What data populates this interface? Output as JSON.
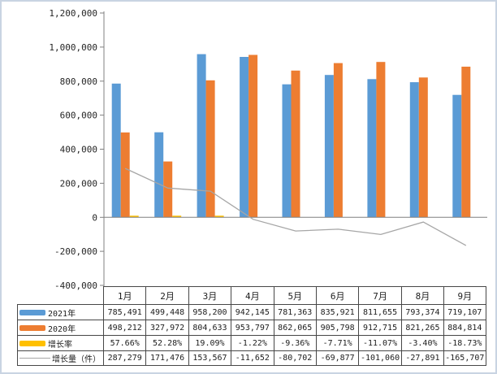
{
  "chart_data": {
    "type": "bar",
    "subtype": "combo-clustered-bar-with-line",
    "title": "",
    "xlabel": "",
    "ylabel": "",
    "categories": [
      "1月",
      "2月",
      "3月",
      "4月",
      "5月",
      "6月",
      "7月",
      "8月",
      "9月"
    ],
    "series": [
      {
        "name": "2021年",
        "kind": "bar",
        "color": "#5B9BD5",
        "values": [
          785491,
          499448,
          958200,
          942145,
          781363,
          835921,
          811655,
          793374,
          719107
        ],
        "display": [
          "785,491",
          "499,448",
          "958,200",
          "942,145",
          "781,363",
          "835,921",
          "811,655",
          "793,374",
          "719,107"
        ]
      },
      {
        "name": "2020年",
        "kind": "bar",
        "color": "#ED7D31",
        "values": [
          498212,
          327972,
          804633,
          953797,
          862065,
          905798,
          912715,
          821265,
          884814
        ],
        "display": [
          "498,212",
          "327,972",
          "804,633",
          "953,797",
          "862,065",
          "905,798",
          "912,715",
          "821,265",
          "884,814"
        ]
      },
      {
        "name": "增长率",
        "kind": "bar",
        "color": "#FFC000",
        "values": [
          57.66,
          52.28,
          19.09,
          -1.22,
          -9.36,
          -7.71,
          -11.07,
          -3.4,
          -18.73
        ],
        "display": [
          "57.66%",
          "52.28%",
          "19.09%",
          "-1.22%",
          "-9.36%",
          "-7.71%",
          "-11.07%",
          "-3.40%",
          "-18.73%"
        ]
      },
      {
        "name": "增长量（件）",
        "kind": "line",
        "color": "#A6A6A6",
        "values": [
          287279,
          171476,
          153567,
          -11652,
          -80702,
          -69877,
          -101060,
          -27891,
          -165707
        ],
        "display": [
          "287,279",
          "171,476",
          "153,567",
          "-11,652",
          "-80,702",
          "-69,877",
          "-101,060",
          "-27,891",
          "-165,707"
        ]
      }
    ],
    "y_axis": {
      "min": -400000,
      "max": 1200000,
      "step": 200000,
      "tick_labels": [
        "1,200,000",
        "1,000,000",
        "800,000",
        "600,000",
        "400,000",
        "200,000",
        "0",
        "-200,000",
        "-400,000"
      ]
    },
    "grid": false,
    "legend_position": "table-left-column",
    "colors": {
      "axis": "#808080",
      "tick_text": "#262626",
      "table_border": "#474747",
      "frame_border": "#c9d4e2",
      "background": "#ffffff"
    }
  }
}
